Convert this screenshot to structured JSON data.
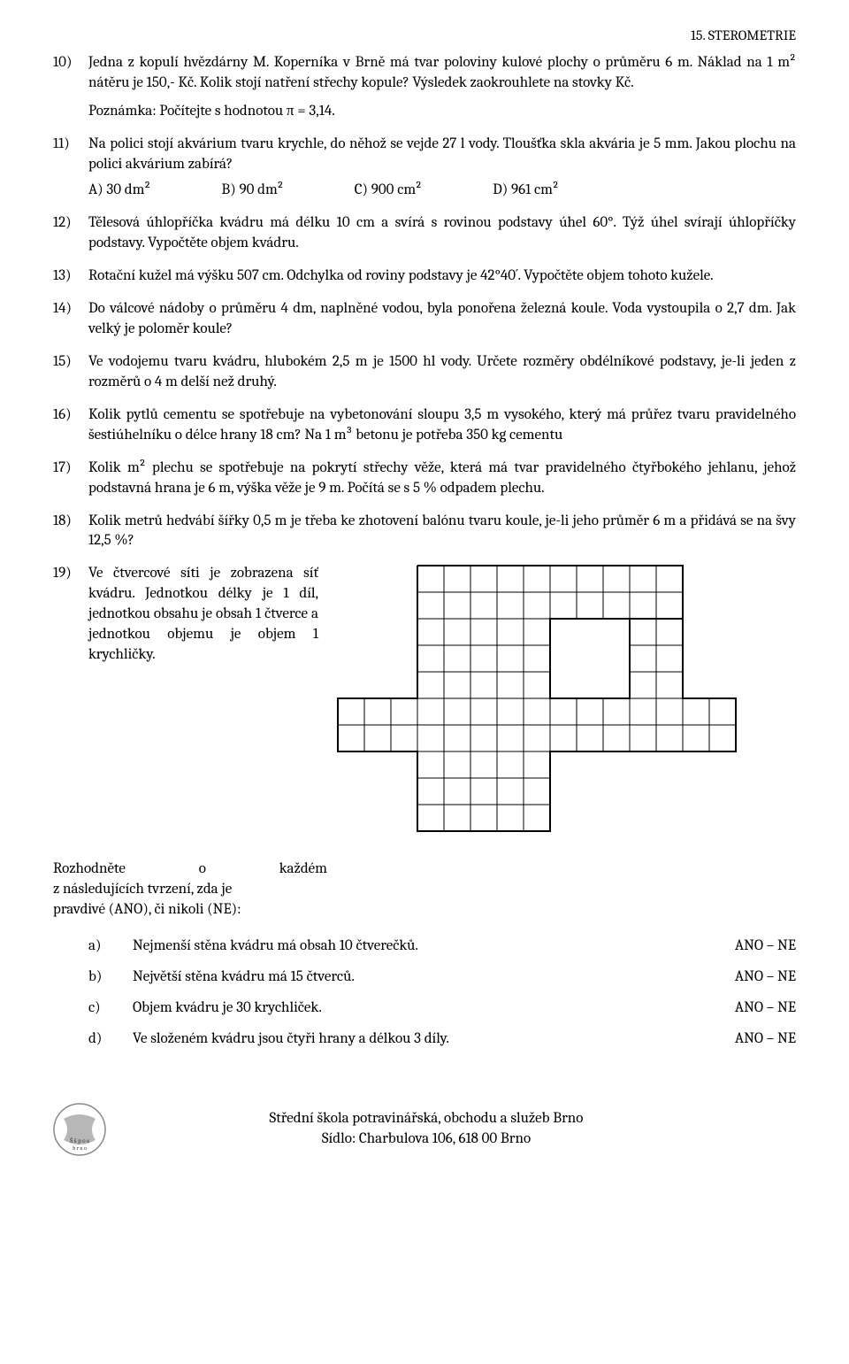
{
  "header": "15. STEROMETRIE",
  "problems": [
    {
      "num": "10)",
      "text": "Jedna z kopulí hvězdárny M. Koperníka v Brně má tvar poloviny kulové plochy o průměru 6 m. Náklad na 1 m² nátěru je 150,- Kč. Kolik stojí natření střechy kopule? Výsledek zaokrouhlete na stovky Kč.",
      "note": "Poznámka: Počítejte s hodnotou π = 3,14."
    },
    {
      "num": "11)",
      "text": "Na polici stojí akvárium tvaru krychle, do něhož se vejde 27 l vody. Tloušťka skla akvária je 5 mm. Jakou plochu na polici akvárium zabírá?",
      "choices": [
        "A) 30 dm²",
        "B) 90 dm²",
        "C) 900 cm²",
        "D) 961 cm²"
      ]
    },
    {
      "num": "12)",
      "text": "Tělesová úhlopříčka kvádru má délku 10 cm a svírá s rovinou podstavy úhel 60°. Týž úhel svírají úhlopříčky podstavy. Vypočtěte objem kvádru."
    },
    {
      "num": "13)",
      "text": "Rotační kužel má výšku 507 cm. Odchylka od roviny podstavy je 42°40´. Vypočtěte objem tohoto kužele."
    },
    {
      "num": "14)",
      "text": "Do válcové nádoby o průměru 4 dm, naplněné vodou, byla ponořena železná koule. Voda vystoupila o 2,7 dm. Jak velký je poloměr koule?"
    },
    {
      "num": "15)",
      "text": "Ve vodojemu tvaru kvádru, hlubokém 2,5 m je 1500 hl vody. Určete rozměry obdélníkové podstavy, je-li jeden z rozměrů o 4 m delší než druhý."
    },
    {
      "num": "16)",
      "text": "Kolik pytlů cementu se spotřebuje na vybetonování sloupu 3,5 m vysokého, který má průřez tvaru pravidelného šestiúhelníku o délce hrany 18 cm? Na 1 m³ betonu je potřeba 350 kg cementu"
    },
    {
      "num": "17)",
      "text": "Kolik m² plechu se spotřebuje na pokrytí střechy věže, která má tvar pravidelného čtyřbokého jehlanu, jehož podstavná hrana je 6 m, výška věže je 9 m. Počítá se s 5 % odpadem plechu."
    },
    {
      "num": "18)",
      "text": "Kolik metrů hedvábí šířky 0,5 m je třeba ke zhotovení balónu tvaru koule, je-li jeho průměr 6 m a přidává se na švy 12,5 %?"
    },
    {
      "num": "19)",
      "text": "Ve čtvercové síti je zobrazena síť kvádru. Jednotkou délky je 1 díl, jednotkou obsahu je obsah 1 čtverce a jednotkou objemu je objem 1 krychličky."
    }
  ],
  "decide": {
    "line1_w1": "Rozhodněte",
    "line1_w2": "o",
    "line1_w3": "každém",
    "line2": "z následujících   tvrzení,   zda   je",
    "line3": "pravdivé (ANO), či nikoli (NE):"
  },
  "subitems": [
    {
      "letter": "a)",
      "text": "Nejmenší stěna kvádru má obsah 10 čtverečků.",
      "ans": "ANO – NE"
    },
    {
      "letter": "b)",
      "text": "Největší stěna kvádru má 15 čtverců.",
      "ans": "ANO – NE"
    },
    {
      "letter": "c)",
      "text": "Objem kvádru je 30 krychliček.",
      "ans": "ANO – NE"
    },
    {
      "letter": "d)",
      "text": "Ve složeném kvádru jsou čtyři hrany a délkou 3 díly.",
      "ans": "ANO – NE"
    }
  ],
  "net": {
    "cell": 30,
    "cols": 15,
    "rows": 10,
    "stroke": "#000000",
    "strokeWidth": 1,
    "outlineWidth": 2,
    "cells": [
      [
        3,
        0
      ],
      [
        4,
        0
      ],
      [
        5,
        0
      ],
      [
        6,
        0
      ],
      [
        7,
        0
      ],
      [
        8,
        0
      ],
      [
        9,
        0
      ],
      [
        10,
        0
      ],
      [
        11,
        0
      ],
      [
        12,
        0
      ],
      [
        3,
        1
      ],
      [
        4,
        1
      ],
      [
        5,
        1
      ],
      [
        6,
        1
      ],
      [
        7,
        1
      ],
      [
        8,
        1
      ],
      [
        9,
        1
      ],
      [
        10,
        1
      ],
      [
        11,
        1
      ],
      [
        12,
        1
      ],
      [
        3,
        2
      ],
      [
        4,
        2
      ],
      [
        5,
        2
      ],
      [
        6,
        2
      ],
      [
        7,
        2
      ],
      [
        11,
        2
      ],
      [
        12,
        2
      ],
      [
        3,
        3
      ],
      [
        4,
        3
      ],
      [
        5,
        3
      ],
      [
        6,
        3
      ],
      [
        7,
        3
      ],
      [
        11,
        3
      ],
      [
        12,
        3
      ],
      [
        3,
        4
      ],
      [
        4,
        4
      ],
      [
        5,
        4
      ],
      [
        6,
        4
      ],
      [
        7,
        4
      ],
      [
        11,
        4
      ],
      [
        12,
        4
      ],
      [
        0,
        5
      ],
      [
        1,
        5
      ],
      [
        2,
        5
      ],
      [
        3,
        5
      ],
      [
        4,
        5
      ],
      [
        5,
        5
      ],
      [
        6,
        5
      ],
      [
        7,
        5
      ],
      [
        8,
        5
      ],
      [
        9,
        5
      ],
      [
        10,
        5
      ],
      [
        11,
        5
      ],
      [
        12,
        5
      ],
      [
        13,
        5
      ],
      [
        14,
        5
      ],
      [
        0,
        6
      ],
      [
        1,
        6
      ],
      [
        2,
        6
      ],
      [
        3,
        6
      ],
      [
        4,
        6
      ],
      [
        5,
        6
      ],
      [
        6,
        6
      ],
      [
        7,
        6
      ],
      [
        8,
        6
      ],
      [
        9,
        6
      ],
      [
        10,
        6
      ],
      [
        11,
        6
      ],
      [
        12,
        6
      ],
      [
        13,
        6
      ],
      [
        14,
        6
      ],
      [
        3,
        7
      ],
      [
        4,
        7
      ],
      [
        5,
        7
      ],
      [
        6,
        7
      ],
      [
        7,
        7
      ],
      [
        3,
        8
      ],
      [
        4,
        8
      ],
      [
        5,
        8
      ],
      [
        6,
        8
      ],
      [
        7,
        8
      ],
      [
        3,
        9
      ],
      [
        4,
        9
      ],
      [
        5,
        9
      ],
      [
        6,
        9
      ],
      [
        7,
        9
      ]
    ],
    "outline": [
      [
        3,
        0
      ],
      [
        13,
        0
      ],
      [
        13,
        2
      ],
      [
        8,
        2
      ],
      [
        8,
        5
      ],
      [
        11,
        5
      ],
      [
        11,
        2
      ],
      [
        13,
        2
      ],
      [
        13,
        5
      ],
      [
        15,
        5
      ],
      [
        15,
        7
      ],
      [
        8,
        7
      ],
      [
        8,
        10
      ],
      [
        3,
        10
      ],
      [
        3,
        7
      ],
      [
        0,
        7
      ],
      [
        0,
        5
      ],
      [
        3,
        5
      ],
      [
        3,
        0
      ]
    ]
  },
  "footer": {
    "line1": "Střední škola potravinářská, obchodu a služeb Brno",
    "line2": "Sídlo: Charbulova 106, 618 00 Brno",
    "logo_text1": "Š š p o s",
    "logo_text2": "b r n o"
  }
}
